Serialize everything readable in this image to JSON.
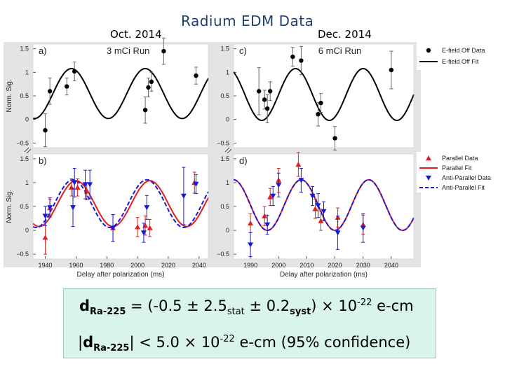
{
  "title": "Radium EDM Data",
  "left_date": "Oct. 2014",
  "right_date": "Dec. 2014",
  "y_axis_label": "Norm. Sig.",
  "x_axis_label": "Delay after polarization (ms)",
  "equations": {
    "line1": {
      "d": "d",
      "d_sub": "Ra-225",
      "eq_open": " = (-0.5 ± 2.5",
      "stat_sub": "stat",
      "pm": " ± 0.2",
      "syst_sub": "syst",
      "times": ") × 10",
      "exp": "-22",
      "unit": " e-cm"
    },
    "line2": {
      "bar_open": "|",
      "d": "d",
      "d_sub": "Ra-225",
      "bar_close": "|",
      "lt": " < 5.0 × 10",
      "exp": "-22",
      "unit": " e-cm (95% confidence)"
    }
  },
  "colors": {
    "off": "#000000",
    "parallel": "#e02020",
    "anti": "#1a1ad6",
    "title": "#1f3f6e"
  },
  "chart_data": [
    {
      "id": "a",
      "type": "scatter",
      "panel_label": "a)",
      "run_label": "3 mCi Run",
      "xlim": [
        1932,
        2046
      ],
      "ylim": [
        -0.6,
        1.6
      ],
      "y_ticks": [
        -0.5,
        0,
        0.5,
        1,
        1.5
      ],
      "y_tick_labels": [
        "−0.5",
        "0",
        "0.5",
        "1",
        "1.5"
      ],
      "fit": {
        "name": "E-field Off Fit",
        "amp": 0.53,
        "offset": 0.55,
        "period": 48,
        "phase_x": 1957
      },
      "series": [
        {
          "name": "E-field Off Data",
          "color": "#000000",
          "marker": "circle",
          "points": [
            [
              1940,
              -0.23,
              0.35
            ],
            [
              1943,
              0.6,
              0.28
            ],
            [
              1954,
              0.7,
              0.18
            ],
            [
              1959,
              1.02,
              0.2
            ],
            [
              2005,
              0.2,
              0.28
            ],
            [
              2007,
              0.68,
              0.2
            ],
            [
              2009,
              0.8,
              0.2
            ],
            [
              2017,
              1.45,
              0.28
            ],
            [
              2038,
              0.93,
              0.18
            ]
          ]
        }
      ]
    },
    {
      "id": "b",
      "type": "scatter",
      "panel_label": "b)",
      "xlim": [
        1932,
        2046
      ],
      "ylim": [
        -0.6,
        1.6
      ],
      "y_ticks": [
        -0.5,
        0,
        0.5,
        1,
        1.5
      ],
      "y_tick_labels": [
        "−0.5",
        "0",
        "0.5",
        "1",
        "1.5"
      ],
      "x_ticks": [
        1940,
        1960,
        1980,
        2000,
        2020,
        2040
      ],
      "fits": [
        {
          "name": "Parallel Fit",
          "color": "#e02020",
          "dashed": false,
          "amp": 0.48,
          "offset": 0.56,
          "period": 48,
          "phase_x": 1960
        },
        {
          "name": "Anti-Parallel Fit",
          "color": "#1a1ad6",
          "dashed": true,
          "amp": 0.5,
          "offset": 0.56,
          "period": 48,
          "phase_x": 1958
        }
      ],
      "series": [
        {
          "name": "Parallel Data",
          "color": "#e02020",
          "marker": "triangle-up",
          "points": [
            [
              1940,
              -0.15,
              0.35
            ],
            [
              1943,
              0.47,
              0.18
            ],
            [
              1957,
              0.9,
              0.18
            ],
            [
              1961,
              0.9,
              0.18
            ],
            [
              1967,
              0.82,
              0.18
            ],
            [
              1984,
              0.05,
              0.28
            ],
            [
              2000,
              0.07,
              0.2
            ],
            [
              2005,
              0.1,
              0.2
            ],
            [
              2008,
              0.05,
              0.18
            ],
            [
              2037,
              1.0,
              0.22
            ]
          ]
        },
        {
          "name": "Anti-Parallel Data",
          "color": "#1a1ad6",
          "marker": "triangle-down",
          "points": [
            [
              1940,
              0.3,
              0.2
            ],
            [
              1943,
              0.48,
              0.2
            ],
            [
              1958,
              0.48,
              0.4
            ],
            [
              1959,
              1.0,
              0.3
            ],
            [
              1966,
              0.96,
              0.3
            ],
            [
              1969,
              0.96,
              0.3
            ],
            [
              1984,
              0.05,
              0.28
            ],
            [
              2004,
              -0.05,
              0.2
            ],
            [
              2006,
              0.48,
              0.25
            ],
            [
              2030,
              0.72,
              0.6
            ],
            [
              2038,
              0.97,
              0.2
            ]
          ]
        }
      ]
    },
    {
      "id": "c",
      "type": "scatter",
      "panel_label": "c)",
      "run_label": "6 mCi Run",
      "xlim": [
        1984,
        2048
      ],
      "ylim": [
        -0.6,
        1.6
      ],
      "y_ticks": [
        -0.5,
        0,
        0.5,
        1,
        1.5
      ],
      "y_tick_labels": [
        "−0.5",
        "0",
        "0.5",
        "1",
        "1.5"
      ],
      "fit": {
        "name": "E-field Off Fit",
        "amp": 0.55,
        "offset": 0.53,
        "period": 24,
        "phase_x": 2006
      },
      "series": [
        {
          "name": "E-field Off Data",
          "color": "#000000",
          "marker": "circle",
          "points": [
            [
              1993,
              0.6,
              0.5
            ],
            [
              1995,
              0.42,
              0.2
            ],
            [
              1996,
              0.23,
              0.3
            ],
            [
              1997,
              0.6,
              0.2
            ],
            [
              2005,
              1.33,
              0.2
            ],
            [
              2008,
              1.25,
              0.3
            ],
            [
              2014,
              0.11,
              0.25
            ],
            [
              2015,
              0.35,
              0.2
            ],
            [
              2020,
              -0.4,
              0.25
            ],
            [
              2040,
              1.05,
              0.4
            ]
          ]
        }
      ]
    },
    {
      "id": "d",
      "type": "scatter",
      "panel_label": "d)",
      "xlim": [
        1984,
        2048
      ],
      "ylim": [
        -0.6,
        1.6
      ],
      "y_ticks": [
        -0.5,
        0,
        0.5,
        1,
        1.5
      ],
      "y_tick_labels": [
        "−0.5",
        "0",
        "0.5",
        "1",
        "1.5"
      ],
      "x_ticks": [
        1990,
        2000,
        2010,
        2020,
        2030,
        2040
      ],
      "fits": [
        {
          "name": "Parallel Fit",
          "color": "#e02020",
          "dashed": false,
          "amp": 0.53,
          "offset": 0.53,
          "period": 24,
          "phase_x": 2008
        },
        {
          "name": "Anti-Parallel Fit",
          "color": "#1a1ad6",
          "dashed": true,
          "amp": 0.53,
          "offset": 0.53,
          "period": 24,
          "phase_x": 2008
        }
      ],
      "series": [
        {
          "name": "Parallel Data",
          "color": "#e02020",
          "marker": "triangle-up",
          "points": [
            [
              1990,
              0.15,
              0.2
            ],
            [
              1995,
              0.3,
              0.2
            ],
            [
              1997,
              0.7,
              0.18
            ],
            [
              2000,
              1.05,
              0.25
            ],
            [
              2007,
              1.38,
              0.25
            ],
            [
              2013,
              0.45,
              0.2
            ],
            [
              2015,
              0.2,
              0.2
            ],
            [
              2021,
              0.27,
              0.2
            ],
            [
              2030,
              0.12,
              0.2
            ]
          ]
        },
        {
          "name": "Anti-Parallel Data",
          "color": "#1a1ad6",
          "marker": "triangle-down",
          "points": [
            [
              1990,
              -0.3,
              0.25
            ],
            [
              1996,
              0.12,
              0.2
            ],
            [
              1998,
              0.72,
              0.2
            ],
            [
              2000,
              0.95,
              0.25
            ],
            [
              2008,
              1.05,
              0.25
            ],
            [
              2012,
              0.72,
              0.2
            ],
            [
              2014,
              0.52,
              0.25
            ],
            [
              2016,
              0.4,
              0.2
            ],
            [
              2021,
              -0.05,
              0.35
            ],
            [
              2030,
              0.05,
              0.3
            ]
          ]
        }
      ]
    }
  ],
  "legends": {
    "top": [
      "E-field Off Data",
      "E-field Off Fit"
    ],
    "bottom": [
      "Parallel Data",
      "Parallel Fit",
      "Anti-Parallel Data",
      "Anti-Parallel Fit"
    ]
  }
}
